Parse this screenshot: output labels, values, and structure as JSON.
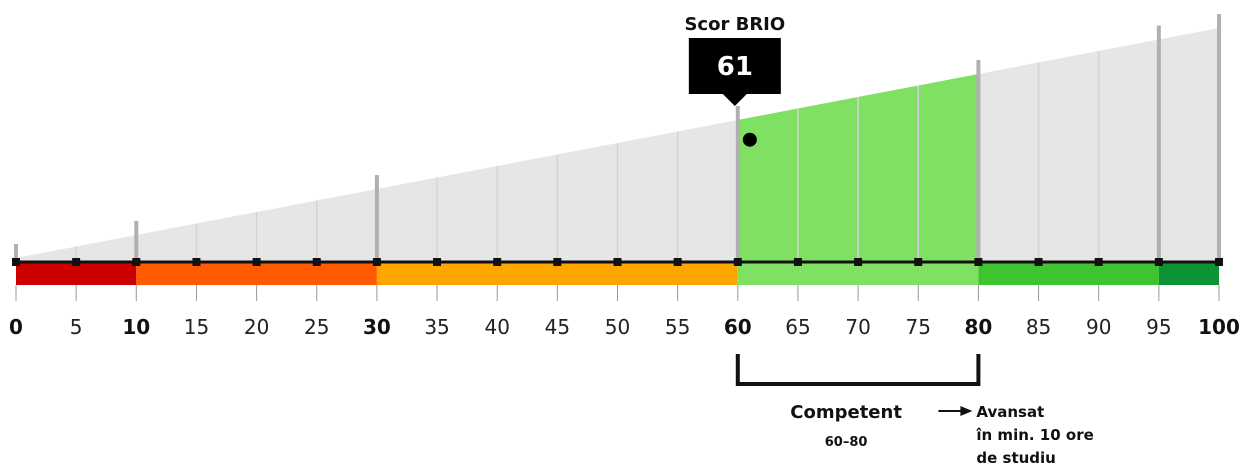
{
  "heading_fragment": "",
  "score": {
    "title": "Scor BRIO",
    "value": 61,
    "display": "61"
  },
  "scale": {
    "min": 0,
    "max": 100,
    "step": 5,
    "major_ticks": [
      0,
      10,
      30,
      60,
      80,
      100
    ]
  },
  "bands": [
    {
      "from": 0,
      "to": 10,
      "color": "#cc0000"
    },
    {
      "from": 10,
      "to": 30,
      "color": "#ff5a00"
    },
    {
      "from": 30,
      "to": 60,
      "color": "#ffa500"
    },
    {
      "from": 60,
      "to": 80,
      "color": "#7fe064"
    },
    {
      "from": 80,
      "to": 95,
      "color": "#3ec42e"
    },
    {
      "from": 95,
      "to": 100,
      "color": "#0c9434"
    }
  ],
  "highlight": {
    "from": 60,
    "to": 80,
    "color": "#7fe064"
  },
  "level": {
    "name": "Competent",
    "range": "60–80"
  },
  "next_level": {
    "line1": "Avansat",
    "line2": "în min. 10 ore",
    "line3": "de studiu"
  },
  "colors": {
    "wedge": "#e6e6e6",
    "axis": "#111111",
    "gridline": "#d4d4d4",
    "major_gridline": "#b0b0b0"
  }
}
